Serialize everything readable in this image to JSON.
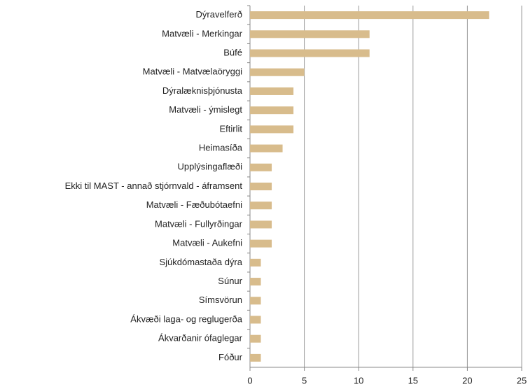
{
  "chart_data": {
    "type": "bar",
    "orientation": "horizontal",
    "categories": [
      "Dýravelferð",
      "Matvæli - Merkingar",
      "Búfé",
      "Matvæli - Matvælaöryggi",
      "Dýralæknisþjónusta",
      "Matvæli - ýmislegt",
      "Eftirlit",
      "Heimasíða",
      "Upplýsingaflæði",
      "Ekki til MAST - annað stjórnvald - áframsent",
      "Matvæli - Fæðubótaefni",
      "Matvæli - Fullyrðingar",
      "Matvæli - Aukefni",
      "Sjúkdómastaða dýra",
      "Súnur",
      "Símsvörun",
      "Ákvæði laga- og reglugerða",
      "Ákvarðanir ófaglegar",
      "Fóður"
    ],
    "values": [
      22,
      11,
      11,
      5,
      4,
      4,
      4,
      3,
      2,
      2,
      2,
      2,
      2,
      1,
      1,
      1,
      1,
      1,
      1
    ],
    "color": "#d8bc8c",
    "xlim": [
      0,
      25
    ],
    "xticks": [
      0,
      5,
      10,
      15,
      20,
      25
    ],
    "grid": true
  }
}
